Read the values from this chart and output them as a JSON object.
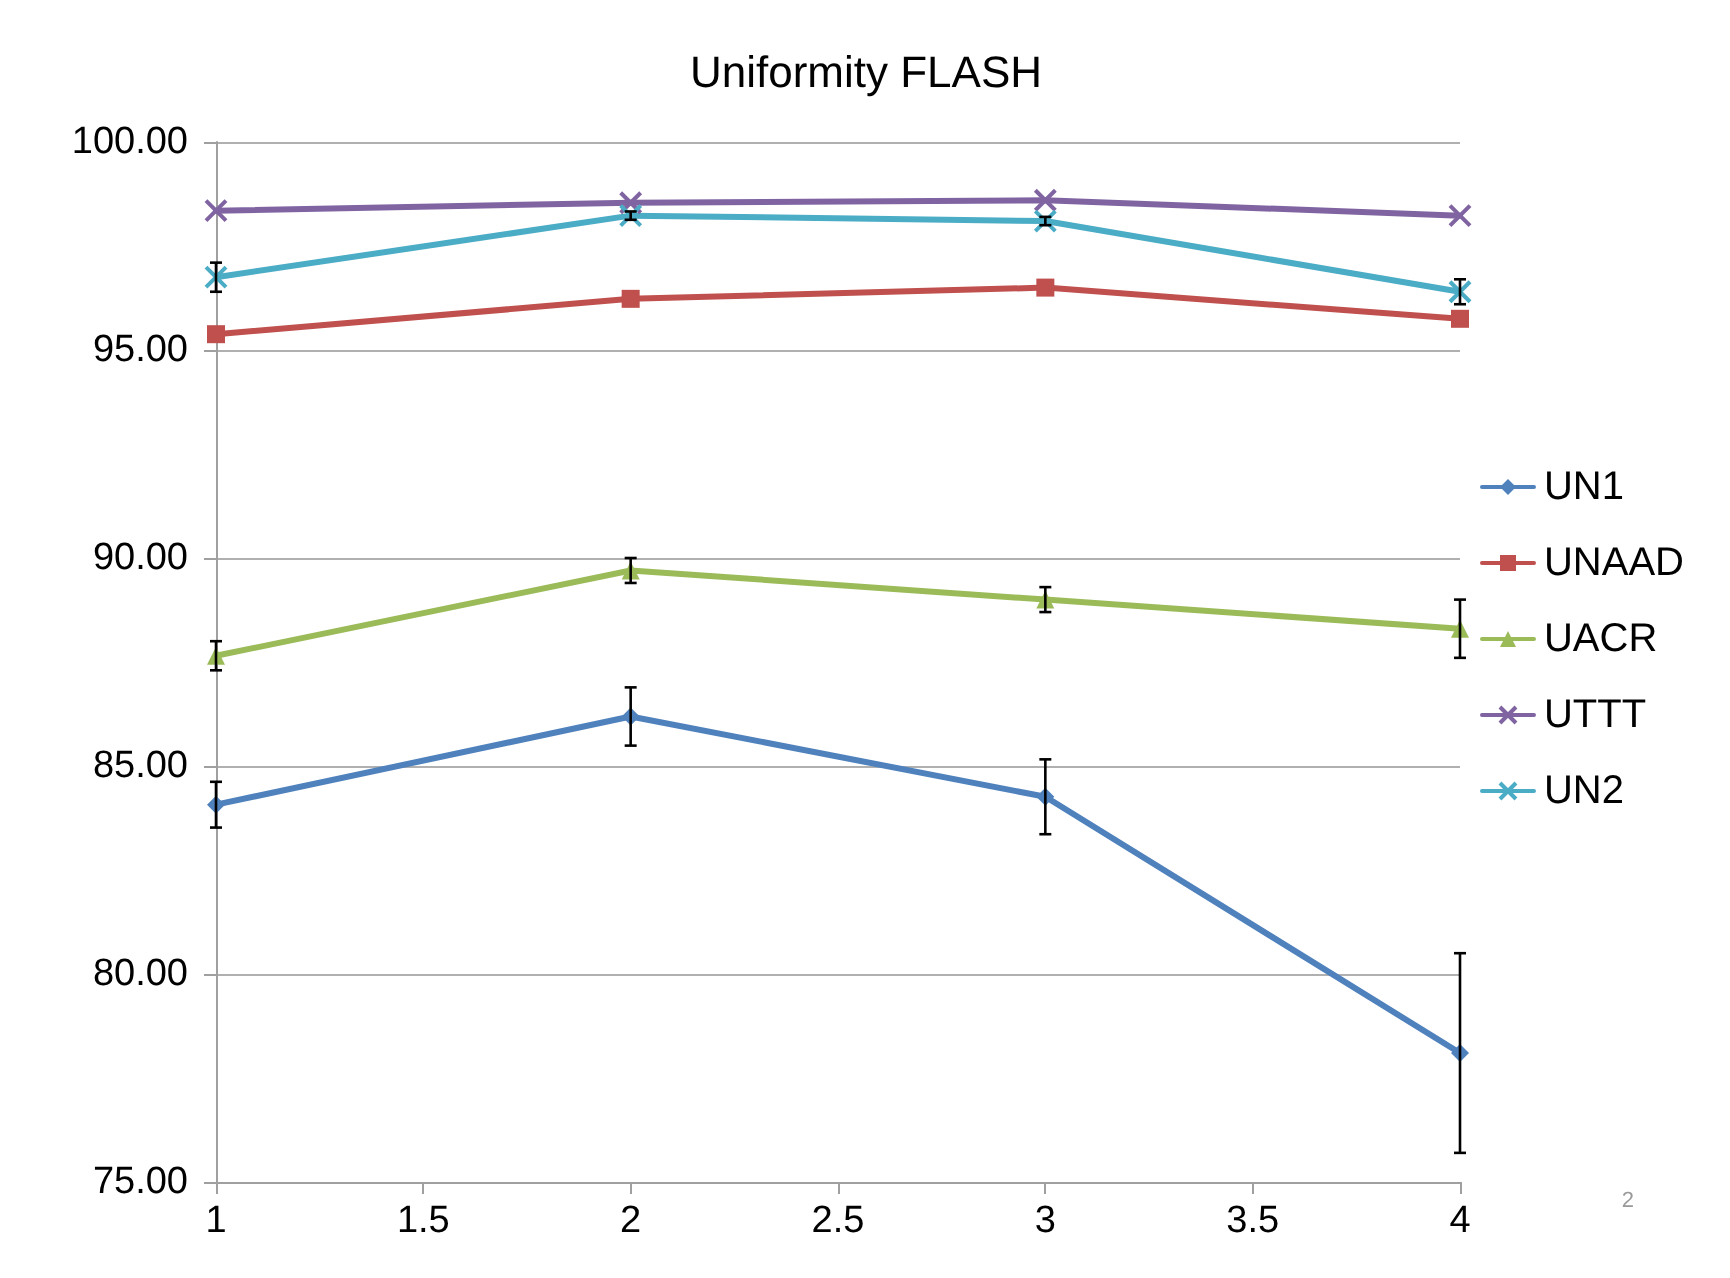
{
  "chart_data": {
    "type": "line",
    "title": "Uniformity FLASH",
    "x": [
      1,
      2,
      3,
      4
    ],
    "series": [
      {
        "name": "UN1",
        "color": "#4f81bd",
        "marker": "diamond",
        "values": [
          84.07,
          86.19,
          84.26,
          78.1
        ],
        "errors": [
          0.55,
          0.7,
          0.9,
          2.4
        ]
      },
      {
        "name": "UNAAD",
        "color": "#c0504d",
        "marker": "square",
        "values": [
          95.38,
          96.23,
          96.5,
          95.75
        ]
      },
      {
        "name": "UACR",
        "color": "#9bbb59",
        "marker": "triangle",
        "values": [
          87.65,
          89.7,
          89.0,
          88.3
        ],
        "errors": [
          0.35,
          0.3,
          0.3,
          0.7
        ]
      },
      {
        "name": "UTTT",
        "color": "#8064a2",
        "marker": "cross",
        "values": [
          98.35,
          98.54,
          98.6,
          98.23
        ]
      },
      {
        "name": "UN2",
        "color": "#4bacc6",
        "marker": "cross",
        "values": [
          96.75,
          98.23,
          98.1,
          96.4
        ],
        "errors": [
          0.35,
          0.1,
          0.1,
          0.3
        ]
      }
    ],
    "xlim": [
      1,
      4
    ],
    "xticks": [
      1,
      1.5,
      2,
      2.5,
      3,
      3.5,
      4
    ],
    "ylim": [
      75,
      100
    ],
    "yticks": [
      {
        "value": 75,
        "label": "75.00"
      },
      {
        "value": 80,
        "label": "80.00"
      },
      {
        "value": 85,
        "label": "85.00"
      },
      {
        "value": 90,
        "label": "90.00"
      },
      {
        "value": 95,
        "label": "95.00"
      },
      {
        "value": 100,
        "label": "100.00"
      }
    ],
    "grid": "y",
    "legend": "right",
    "line_style": "solid",
    "annotations": [
      "2"
    ]
  }
}
